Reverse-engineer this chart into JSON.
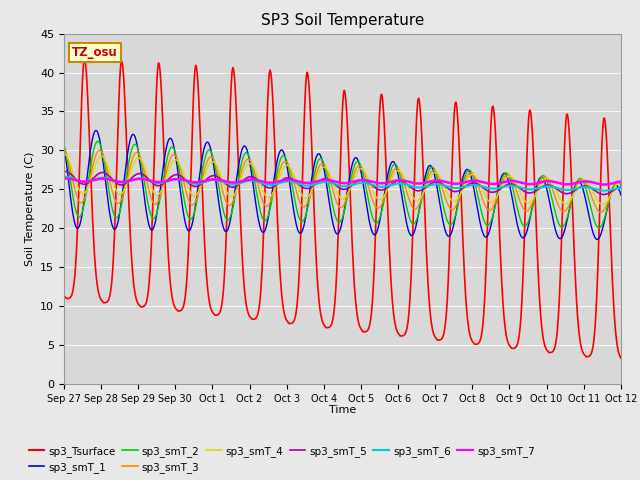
{
  "title": "SP3 Soil Temperature",
  "ylabel": "Soil Temperature (C)",
  "xlabel": "Time",
  "tz_label": "TZ_osu",
  "ylim": [
    0,
    45
  ],
  "fig_facecolor": "#e8e8e8",
  "ax_facecolor": "#d8d8d8",
  "series": {
    "sp3_Tsurface": {
      "color": "#ff0000",
      "lw": 1.2
    },
    "sp3_smT_1": {
      "color": "#0000dd",
      "lw": 1.0
    },
    "sp3_smT_2": {
      "color": "#00cc00",
      "lw": 1.0
    },
    "sp3_smT_3": {
      "color": "#ff8800",
      "lw": 1.0
    },
    "sp3_smT_4": {
      "color": "#dddd00",
      "lw": 1.0
    },
    "sp3_smT_5": {
      "color": "#aa00aa",
      "lw": 1.2
    },
    "sp3_smT_6": {
      "color": "#00cccc",
      "lw": 1.5
    },
    "sp3_smT_7": {
      "color": "#ff00ff",
      "lw": 1.8
    }
  },
  "xtick_labels": [
    "Sep 27",
    "Sep 28",
    "Sep 29",
    "Sep 30",
    "Oct 1",
    "Oct 2",
    "Oct 3",
    "Oct 4",
    "Oct 5",
    "Oct 6",
    "Oct 7",
    "Oct 8",
    "Oct 9",
    "Oct 10",
    "Oct 11",
    "Oct 12"
  ],
  "ytick_labels": [
    "0",
    "5",
    "10",
    "15",
    "20",
    "25",
    "30",
    "35",
    "40",
    "45"
  ],
  "n_days": 15,
  "pts_per_day": 48
}
